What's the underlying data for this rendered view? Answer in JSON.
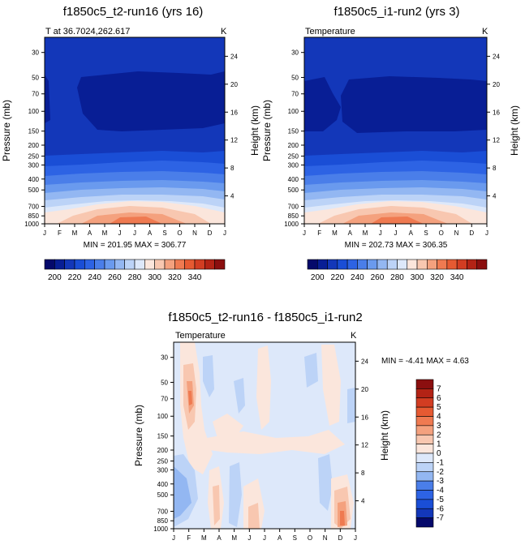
{
  "chart_data": [
    {
      "type": "contour",
      "title": "f1850c5_t2-run16 (yrs 16)",
      "left_string": "T at 36.7024,262.617",
      "right_string": "K",
      "xlabel": "",
      "ylabel": "Pressure (mb)",
      "ylabel_right": "Height (km)",
      "x_ticks": [
        "J",
        "F",
        "M",
        "A",
        "M",
        "J",
        "J",
        "A",
        "S",
        "O",
        "N",
        "D",
        "J"
      ],
      "pressure_ticks": [
        30,
        50,
        70,
        100,
        150,
        200,
        250,
        300,
        400,
        500,
        700,
        850,
        1000
      ],
      "height_ticks": [
        4,
        8,
        12,
        16,
        20,
        24
      ],
      "ylim": [
        1000,
        22
      ],
      "stats": "MIN = 201.95 MAX = 306.77",
      "min": 201.95,
      "max": 306.77,
      "colorbar_labels": [
        "200",
        "220",
        "240",
        "260",
        "280",
        "300",
        "320",
        "340"
      ],
      "colorbar_levels": [
        195,
        200,
        205,
        210,
        215,
        220,
        225,
        230,
        235,
        240,
        245,
        250,
        255,
        260,
        265,
        270,
        275,
        280,
        285,
        290,
        295,
        300,
        305,
        310,
        315,
        320,
        325,
        330,
        335,
        340,
        345
      ],
      "colorbar_colors": [
        "#05096b",
        "#081e95",
        "#1337b9",
        "#1a4ed6",
        "#2d63e4",
        "#4a7ee9",
        "#6a9aee",
        "#93b7f2",
        "#bcd3f7",
        "#dde8fa",
        "#fbe6dc",
        "#f8c7b0",
        "#f4a17e",
        "#ef7a51",
        "#e65a32",
        "#d23d22",
        "#b32315",
        "#8b0f0f"
      ]
    },
    {
      "type": "contour",
      "title": "f1850c5_i1-run2 (yrs 3)",
      "left_string": "Temperature",
      "right_string": "K",
      "xlabel": "",
      "ylabel": "Pressure (mb)",
      "ylabel_right": "Height (km)",
      "x_ticks": [
        "J",
        "F",
        "M",
        "A",
        "M",
        "J",
        "J",
        "A",
        "S",
        "O",
        "N",
        "D",
        "J"
      ],
      "pressure_ticks": [
        30,
        50,
        70,
        100,
        150,
        200,
        250,
        300,
        400,
        500,
        700,
        850,
        1000
      ],
      "height_ticks": [
        4,
        8,
        12,
        16,
        20,
        24
      ],
      "ylim": [
        1000,
        22
      ],
      "stats": "MIN = 202.73 MAX = 306.35",
      "min": 202.73,
      "max": 306.35,
      "colorbar_labels": [
        "200",
        "220",
        "240",
        "260",
        "280",
        "300",
        "320",
        "340"
      ]
    },
    {
      "type": "contour",
      "title": "f1850c5_t2-run16 - f1850c5_i1-run2",
      "left_string": "Temperature",
      "right_string": "K",
      "xlabel": "",
      "ylabel": "Pressure (mb)",
      "ylabel_right": "Height (km)",
      "x_ticks": [
        "J",
        "F",
        "M",
        "A",
        "M",
        "J",
        "J",
        "A",
        "S",
        "O",
        "N",
        "D",
        "J"
      ],
      "pressure_ticks": [
        30,
        50,
        70,
        100,
        150,
        200,
        250,
        300,
        400,
        500,
        700,
        850,
        1000
      ],
      "height_ticks": [
        4,
        8,
        12,
        16,
        20,
        24
      ],
      "ylim": [
        1000,
        22
      ],
      "stats": "MIN =  -4.41 MAX =   4.63",
      "min": -4.41,
      "max": 4.63,
      "colorbar_labels": [
        "7",
        "6",
        "5",
        "4",
        "3",
        "2",
        "1",
        "0",
        "-1",
        "-2",
        "-3",
        "-4",
        "-5",
        "-6",
        "-7"
      ],
      "colorbar_colors": [
        "#8b0f0f",
        "#b32315",
        "#d23d22",
        "#e65a32",
        "#ef7a51",
        "#f4a17e",
        "#f8c7b0",
        "#fbe6dc",
        "#dde8fa",
        "#bcd3f7",
        "#93b7f2",
        "#4a7ee9",
        "#2d63e4",
        "#1a4ed6",
        "#1337b9",
        "#05096b"
      ]
    }
  ],
  "colors": {
    "layer_20_22": "#1337b9",
    "layer_22_24": "#1a4ed6",
    "layer_24_26": "#2d63e4",
    "layer_26_28": "#4a7ee9",
    "layer_28_30": "#6a9aee",
    "layer_30_32": "#93b7f2",
    "layer_32_34": "#bcd3f7",
    "layer_34_36": "#dde8fa",
    "warm_1": "#fbe6dc",
    "warm_2": "#f8c7b0",
    "warm_3": "#f4a17e",
    "warm_4": "#ef7a51",
    "cold_core": "#081e95",
    "diff_background": "#dde8fa"
  }
}
